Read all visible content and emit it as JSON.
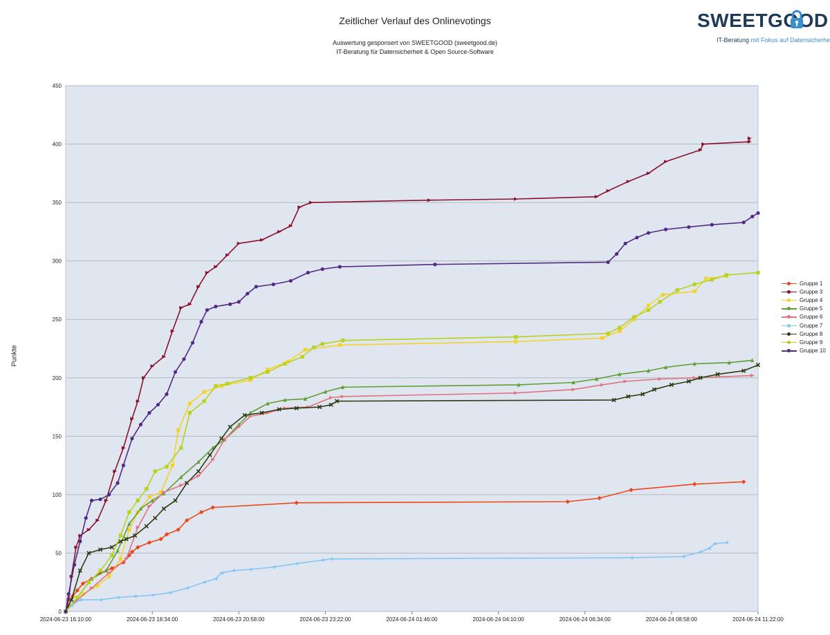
{
  "header": {
    "title": "Zeitlicher Verlauf des Onlinevotings",
    "subtitle_line1": "Auswertung gesponsert von SWEETGOOD (sweetgood.de)",
    "subtitle_line2": "IT-Beratung für Datensicherheit & Open Source-Software"
  },
  "logo": {
    "wordmark": "SWEETGOOD",
    "tagline_part1": "IT-Beratung",
    "tagline_part2": "mit Fokus auf Datensicherheit",
    "brand_color": "#1e3a57",
    "accent_color": "#3a8fcf",
    "icon": "padlock-icon"
  },
  "chart_data": {
    "type": "line",
    "title": "Zeitlicher Verlauf des Onlinevotings",
    "xlabel": "",
    "ylabel": "Punkte",
    "ylim": [
      0,
      450
    ],
    "yticks": [
      0,
      50,
      100,
      150,
      200,
      250,
      300,
      350,
      400,
      450
    ],
    "xticks": [
      "2024-06-23 16:10:00",
      "2024-06-23 18:34:00",
      "2024-06-23 20:58:00",
      "2024-06-23 23:22:00",
      "2024-06-24 01:46:00",
      "2024-06-24 04:10:00",
      "2024-06-24 06:34:00",
      "2024-06-24 08:58:00",
      "2024-06-24 11:22:00"
    ],
    "x_unit": "minutes after 2024-06-23 16:10:00",
    "xlim": [
      0,
      1200
    ],
    "grid": "horizontal",
    "legend_position": "right",
    "plot_background": "#dfe6f0",
    "series": [
      {
        "name": "Gruppe 1",
        "color": "#ee4618",
        "marker": "diamond",
        "points": [
          [
            0,
            0
          ],
          [
            5,
            5
          ],
          [
            12,
            13
          ],
          [
            20,
            18
          ],
          [
            30,
            24
          ],
          [
            45,
            28
          ],
          [
            60,
            33
          ],
          [
            80,
            37
          ],
          [
            100,
            42
          ],
          [
            110,
            48
          ],
          [
            115,
            51
          ],
          [
            125,
            55
          ],
          [
            145,
            59
          ],
          [
            165,
            62
          ],
          [
            175,
            66
          ],
          [
            195,
            70
          ],
          [
            210,
            78
          ],
          [
            235,
            85
          ],
          [
            255,
            89
          ],
          [
            400,
            93
          ],
          [
            870,
            94
          ],
          [
            925,
            97
          ],
          [
            980,
            104
          ],
          [
            1090,
            109
          ],
          [
            1175,
            111
          ]
        ]
      },
      {
        "name": "Gruppe 3",
        "color": "#8a0f2b",
        "marker": "triangle-right",
        "points": [
          [
            0,
            0
          ],
          [
            5,
            10
          ],
          [
            10,
            30
          ],
          [
            18,
            55
          ],
          [
            25,
            65
          ],
          [
            40,
            70
          ],
          [
            55,
            78
          ],
          [
            70,
            95
          ],
          [
            85,
            120
          ],
          [
            100,
            140
          ],
          [
            115,
            165
          ],
          [
            125,
            180
          ],
          [
            135,
            200
          ],
          [
            150,
            210
          ],
          [
            170,
            218
          ],
          [
            185,
            240
          ],
          [
            200,
            260
          ],
          [
            215,
            263
          ],
          [
            230,
            278
          ],
          [
            245,
            290
          ],
          [
            260,
            295
          ],
          [
            280,
            305
          ],
          [
            300,
            315
          ],
          [
            340,
            318
          ],
          [
            370,
            325
          ],
          [
            390,
            330
          ],
          [
            405,
            346
          ],
          [
            425,
            350
          ],
          [
            630,
            352
          ],
          [
            780,
            353
          ],
          [
            920,
            355
          ],
          [
            940,
            360
          ],
          [
            975,
            368
          ],
          [
            1010,
            375
          ],
          [
            1040,
            385
          ],
          [
            1100,
            395
          ],
          [
            1105,
            400
          ],
          [
            1185,
            402
          ],
          [
            1185,
            405
          ]
        ]
      },
      {
        "name": "Gruppe 4",
        "color": "#f5d22a",
        "marker": "square",
        "points": [
          [
            0,
            0
          ],
          [
            30,
            15
          ],
          [
            55,
            22
          ],
          [
            75,
            30
          ],
          [
            95,
            45
          ],
          [
            110,
            70
          ],
          [
            125,
            85
          ],
          [
            145,
            98
          ],
          [
            165,
            102
          ],
          [
            185,
            125
          ],
          [
            195,
            155
          ],
          [
            215,
            178
          ],
          [
            240,
            188
          ],
          [
            270,
            193
          ],
          [
            320,
            198
          ],
          [
            350,
            207
          ],
          [
            385,
            214
          ],
          [
            415,
            224
          ],
          [
            475,
            228
          ],
          [
            780,
            231
          ],
          [
            930,
            234
          ],
          [
            960,
            240
          ],
          [
            985,
            250
          ],
          [
            1010,
            262
          ],
          [
            1035,
            271
          ],
          [
            1090,
            274
          ],
          [
            1110,
            285
          ],
          [
            1145,
            287
          ]
        ]
      },
      {
        "name": "Gruppe 5",
        "color": "#5e9e32",
        "marker": "triangle",
        "points": [
          [
            0,
            0
          ],
          [
            20,
            12
          ],
          [
            45,
            28
          ],
          [
            70,
            35
          ],
          [
            90,
            52
          ],
          [
            110,
            75
          ],
          [
            130,
            88
          ],
          [
            150,
            95
          ],
          [
            170,
            101
          ],
          [
            200,
            115
          ],
          [
            230,
            128
          ],
          [
            255,
            140
          ],
          [
            275,
            147
          ],
          [
            300,
            160
          ],
          [
            320,
            170
          ],
          [
            350,
            178
          ],
          [
            380,
            181
          ],
          [
            415,
            182
          ],
          [
            450,
            188
          ],
          [
            480,
            192
          ],
          [
            785,
            194
          ],
          [
            880,
            196
          ],
          [
            920,
            199
          ],
          [
            960,
            203
          ],
          [
            1010,
            206
          ],
          [
            1040,
            209
          ],
          [
            1090,
            212
          ],
          [
            1150,
            213
          ],
          [
            1190,
            215
          ]
        ]
      },
      {
        "name": "Gruppe 6",
        "color": "#e0727e",
        "marker": "triangle-right",
        "points": [
          [
            0,
            0
          ],
          [
            20,
            10
          ],
          [
            45,
            20
          ],
          [
            75,
            33
          ],
          [
            105,
            45
          ],
          [
            125,
            72
          ],
          [
            145,
            90
          ],
          [
            170,
            102
          ],
          [
            200,
            108
          ],
          [
            230,
            116
          ],
          [
            255,
            130
          ],
          [
            275,
            147
          ],
          [
            300,
            158
          ],
          [
            320,
            167
          ],
          [
            350,
            170
          ],
          [
            380,
            174
          ],
          [
            420,
            175
          ],
          [
            460,
            183
          ],
          [
            480,
            184
          ],
          [
            780,
            187
          ],
          [
            880,
            190
          ],
          [
            930,
            194
          ],
          [
            970,
            197
          ],
          [
            1030,
            199
          ],
          [
            1090,
            200
          ],
          [
            1190,
            202
          ]
        ]
      },
      {
        "name": "Gruppe 7",
        "color": "#86c6f4",
        "marker": "triangle-left",
        "points": [
          [
            0,
            0
          ],
          [
            10,
            5
          ],
          [
            25,
            10
          ],
          [
            60,
            10
          ],
          [
            90,
            12
          ],
          [
            120,
            13
          ],
          [
            150,
            14
          ],
          [
            180,
            16
          ],
          [
            210,
            20
          ],
          [
            240,
            25
          ],
          [
            260,
            28
          ],
          [
            270,
            33
          ],
          [
            290,
            35
          ],
          [
            320,
            36
          ],
          [
            360,
            38
          ],
          [
            400,
            41
          ],
          [
            445,
            44
          ],
          [
            460,
            45
          ],
          [
            980,
            46
          ],
          [
            1070,
            47
          ],
          [
            1100,
            51
          ],
          [
            1115,
            54
          ],
          [
            1125,
            58
          ],
          [
            1145,
            59
          ]
        ]
      },
      {
        "name": "Gruppe 8",
        "color": "#2c3c12",
        "marker": "x",
        "points": [
          [
            0,
            0
          ],
          [
            10,
            10
          ],
          [
            25,
            35
          ],
          [
            40,
            50
          ],
          [
            60,
            53
          ],
          [
            80,
            55
          ],
          [
            95,
            60
          ],
          [
            105,
            62
          ],
          [
            120,
            65
          ],
          [
            140,
            73
          ],
          [
            155,
            80
          ],
          [
            170,
            88
          ],
          [
            190,
            95
          ],
          [
            210,
            110
          ],
          [
            230,
            120
          ],
          [
            250,
            134
          ],
          [
            270,
            148
          ],
          [
            285,
            158
          ],
          [
            310,
            168
          ],
          [
            340,
            170
          ],
          [
            370,
            173
          ],
          [
            400,
            174
          ],
          [
            440,
            175
          ],
          [
            460,
            177
          ],
          [
            470,
            180
          ],
          [
            950,
            181
          ],
          [
            975,
            184
          ],
          [
            1000,
            186
          ],
          [
            1020,
            190
          ],
          [
            1050,
            194
          ],
          [
            1080,
            197
          ],
          [
            1100,
            200
          ],
          [
            1130,
            203
          ],
          [
            1175,
            206
          ],
          [
            1200,
            211
          ]
        ]
      },
      {
        "name": "Gruppe 9",
        "color": "#b8d21c",
        "marker": "square",
        "points": [
          [
            0,
            0
          ],
          [
            20,
            12
          ],
          [
            40,
            25
          ],
          [
            60,
            35
          ],
          [
            80,
            48
          ],
          [
            95,
            65
          ],
          [
            110,
            85
          ],
          [
            125,
            95
          ],
          [
            140,
            105
          ],
          [
            155,
            120
          ],
          [
            175,
            124
          ],
          [
            200,
            140
          ],
          [
            215,
            170
          ],
          [
            240,
            180
          ],
          [
            260,
            193
          ],
          [
            280,
            195
          ],
          [
            320,
            200
          ],
          [
            350,
            205
          ],
          [
            380,
            212
          ],
          [
            410,
            218
          ],
          [
            430,
            226
          ],
          [
            445,
            229
          ],
          [
            480,
            232
          ],
          [
            780,
            235
          ],
          [
            940,
            238
          ],
          [
            960,
            243
          ],
          [
            985,
            252
          ],
          [
            1010,
            258
          ],
          [
            1030,
            265
          ],
          [
            1060,
            275
          ],
          [
            1090,
            280
          ],
          [
            1120,
            284
          ],
          [
            1145,
            288
          ],
          [
            1200,
            290
          ]
        ]
      },
      {
        "name": "Gruppe 10",
        "color": "#512a84",
        "marker": "circle",
        "points": [
          [
            0,
            0
          ],
          [
            5,
            15
          ],
          [
            15,
            40
          ],
          [
            25,
            60
          ],
          [
            35,
            80
          ],
          [
            45,
            95
          ],
          [
            60,
            96
          ],
          [
            75,
            100
          ],
          [
            90,
            110
          ],
          [
            100,
            125
          ],
          [
            115,
            148
          ],
          [
            130,
            160
          ],
          [
            145,
            170
          ],
          [
            160,
            177
          ],
          [
            175,
            186
          ],
          [
            190,
            205
          ],
          [
            205,
            216
          ],
          [
            220,
            230
          ],
          [
            235,
            248
          ],
          [
            245,
            258
          ],
          [
            260,
            261
          ],
          [
            285,
            263
          ],
          [
            300,
            265
          ],
          [
            315,
            272
          ],
          [
            330,
            278
          ],
          [
            360,
            280
          ],
          [
            390,
            283
          ],
          [
            420,
            290
          ],
          [
            445,
            293
          ],
          [
            475,
            295
          ],
          [
            640,
            297
          ],
          [
            940,
            299
          ],
          [
            955,
            306
          ],
          [
            970,
            315
          ],
          [
            990,
            320
          ],
          [
            1010,
            324
          ],
          [
            1040,
            327
          ],
          [
            1080,
            329
          ],
          [
            1120,
            331
          ],
          [
            1175,
            333
          ],
          [
            1190,
            338
          ],
          [
            1200,
            341
          ]
        ]
      }
    ]
  }
}
